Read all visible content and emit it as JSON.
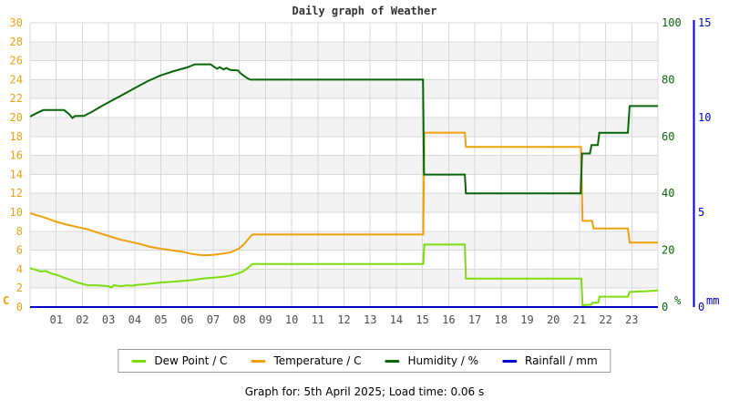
{
  "footer": {
    "text": "Graph for: 5th April 2025; Load time: 0.06 s"
  },
  "colors": {
    "grid": "#d8d8d8",
    "band": "#f3f3f3",
    "title_text": "#333333",
    "x_label_text": "#4d4d4d",
    "temperature": "#f0a00a",
    "dew_point": "#7cdd0e",
    "humidity": "#076607",
    "rainfall": "#0000cc"
  },
  "chart_data": {
    "type": "line",
    "title": "Daily graph of Weather",
    "legend_position": "bottom",
    "x_axis": {
      "range": [
        0,
        24
      ],
      "grid": "hourly",
      "tick_labels": [
        "01",
        "02",
        "03",
        "04",
        "05",
        "06",
        "07",
        "08",
        "09",
        "10",
        "11",
        "12",
        "13",
        "14",
        "15",
        "16",
        "17",
        "18",
        "19",
        "20",
        "21",
        "22",
        "23"
      ]
    },
    "y_axes": [
      {
        "id": "temp_c",
        "side": "left",
        "unit_label": "C",
        "color": "#f0a00a",
        "range": [
          0,
          30
        ],
        "ticks": [
          30,
          28,
          26,
          24,
          22,
          20,
          18,
          16,
          14,
          12,
          10,
          8,
          6,
          4,
          2,
          0
        ]
      },
      {
        "id": "humidity_pct",
        "side": "right",
        "unit_label": "%",
        "color": "#076607",
        "range": [
          0,
          100
        ],
        "ticks": [
          100,
          80,
          60,
          40,
          20,
          0
        ]
      },
      {
        "id": "rain_mm",
        "side": "far_right",
        "unit_label": "mm",
        "color": "#0000cc",
        "range": [
          0,
          15
        ],
        "ticks": [
          15,
          10,
          5,
          0
        ]
      }
    ],
    "series": [
      {
        "name": "Dew Point / C",
        "axis": "temp_c",
        "color": "#7cdd0e",
        "points": [
          [
            0,
            4.1
          ],
          [
            0.2,
            3.95
          ],
          [
            0.4,
            3.75
          ],
          [
            0.6,
            3.8
          ],
          [
            0.8,
            3.55
          ],
          [
            1,
            3.4
          ],
          [
            1.2,
            3.2
          ],
          [
            1.5,
            2.9
          ],
          [
            1.8,
            2.6
          ],
          [
            2,
            2.45
          ],
          [
            2.2,
            2.3
          ],
          [
            2.5,
            2.3
          ],
          [
            2.8,
            2.25
          ],
          [
            3,
            2.2
          ],
          [
            3.1,
            2.05
          ],
          [
            3.2,
            2.3
          ],
          [
            3.5,
            2.2
          ],
          [
            3.7,
            2.3
          ],
          [
            3.9,
            2.25
          ],
          [
            4.1,
            2.35
          ],
          [
            4.4,
            2.4
          ],
          [
            4.7,
            2.5
          ],
          [
            5,
            2.6
          ],
          [
            5.4,
            2.65
          ],
          [
            5.8,
            2.75
          ],
          [
            6.2,
            2.85
          ],
          [
            6.6,
            3
          ],
          [
            7,
            3.1
          ],
          [
            7.4,
            3.2
          ],
          [
            7.7,
            3.35
          ],
          [
            7.9,
            3.5
          ],
          [
            8.1,
            3.7
          ],
          [
            8.25,
            3.95
          ],
          [
            8.4,
            4.3
          ],
          [
            8.5,
            4.55
          ],
          [
            15.03,
            4.55
          ],
          [
            15.07,
            6.6
          ],
          [
            16.62,
            6.6
          ],
          [
            16.66,
            3
          ],
          [
            21.07,
            3
          ],
          [
            21.12,
            0.2
          ],
          [
            21.45,
            0.25
          ],
          [
            21.5,
            0.45
          ],
          [
            21.72,
            0.45
          ],
          [
            21.77,
            1.1
          ],
          [
            22.85,
            1.1
          ],
          [
            22.92,
            1.6
          ],
          [
            23.5,
            1.65
          ],
          [
            24,
            1.75
          ]
        ]
      },
      {
        "name": "Temperature / C",
        "axis": "temp_c",
        "color": "#f0a00a",
        "points": [
          [
            0,
            9.9
          ],
          [
            0.3,
            9.65
          ],
          [
            0.6,
            9.4
          ],
          [
            1,
            9
          ],
          [
            1.4,
            8.7
          ],
          [
            1.8,
            8.45
          ],
          [
            2.2,
            8.2
          ],
          [
            2.6,
            7.85
          ],
          [
            3,
            7.5
          ],
          [
            3.4,
            7.15
          ],
          [
            3.8,
            6.9
          ],
          [
            4.2,
            6.65
          ],
          [
            4.6,
            6.35
          ],
          [
            5,
            6.15
          ],
          [
            5.4,
            6
          ],
          [
            5.8,
            5.85
          ],
          [
            6.2,
            5.6
          ],
          [
            6.6,
            5.45
          ],
          [
            7,
            5.5
          ],
          [
            7.4,
            5.65
          ],
          [
            7.7,
            5.8
          ],
          [
            8,
            6.2
          ],
          [
            8.2,
            6.7
          ],
          [
            8.35,
            7.2
          ],
          [
            8.5,
            7.65
          ],
          [
            15.03,
            7.65
          ],
          [
            15.07,
            18.4
          ],
          [
            16.62,
            18.4
          ],
          [
            16.66,
            16.9
          ],
          [
            21.06,
            16.9
          ],
          [
            21.12,
            9.1
          ],
          [
            21.48,
            9.1
          ],
          [
            21.54,
            8.3
          ],
          [
            22.85,
            8.3
          ],
          [
            22.92,
            6.8
          ],
          [
            24,
            6.8
          ]
        ]
      },
      {
        "name": "Humidity / %",
        "axis": "humidity_pct",
        "color": "#076607",
        "points": [
          [
            0,
            67
          ],
          [
            0.25,
            68.2
          ],
          [
            0.5,
            69.3
          ],
          [
            1.3,
            69.3
          ],
          [
            1.5,
            67.8
          ],
          [
            1.62,
            66.5
          ],
          [
            1.72,
            67.2
          ],
          [
            2.05,
            67.2
          ],
          [
            2.35,
            68.6
          ],
          [
            2.7,
            70.5
          ],
          [
            3.1,
            72.5
          ],
          [
            3.5,
            74.5
          ],
          [
            4,
            77
          ],
          [
            4.5,
            79.5
          ],
          [
            5,
            81.5
          ],
          [
            5.5,
            83
          ],
          [
            6,
            84.3
          ],
          [
            6.3,
            85.4
          ],
          [
            6.9,
            85.4
          ],
          [
            7.05,
            84.4
          ],
          [
            7.15,
            83.8
          ],
          [
            7.25,
            84.4
          ],
          [
            7.4,
            83.6
          ],
          [
            7.5,
            84.1
          ],
          [
            7.65,
            83.4
          ],
          [
            7.95,
            83.2
          ],
          [
            8.05,
            82.2
          ],
          [
            8.18,
            81.3
          ],
          [
            8.3,
            80.5
          ],
          [
            8.42,
            80
          ],
          [
            15.02,
            80
          ],
          [
            15.06,
            46.6
          ],
          [
            16.62,
            46.6
          ],
          [
            16.66,
            40
          ],
          [
            21.05,
            40
          ],
          [
            21.1,
            54
          ],
          [
            21.4,
            54
          ],
          [
            21.46,
            57
          ],
          [
            21.7,
            57
          ],
          [
            21.76,
            61.3
          ],
          [
            22.85,
            61.3
          ],
          [
            22.92,
            70.7
          ],
          [
            24,
            70.7
          ]
        ]
      },
      {
        "name": "Rainfall / mm",
        "axis": "rain_mm",
        "color": "#0000cc",
        "points": [
          [
            0,
            0
          ],
          [
            24,
            0
          ]
        ]
      }
    ]
  }
}
